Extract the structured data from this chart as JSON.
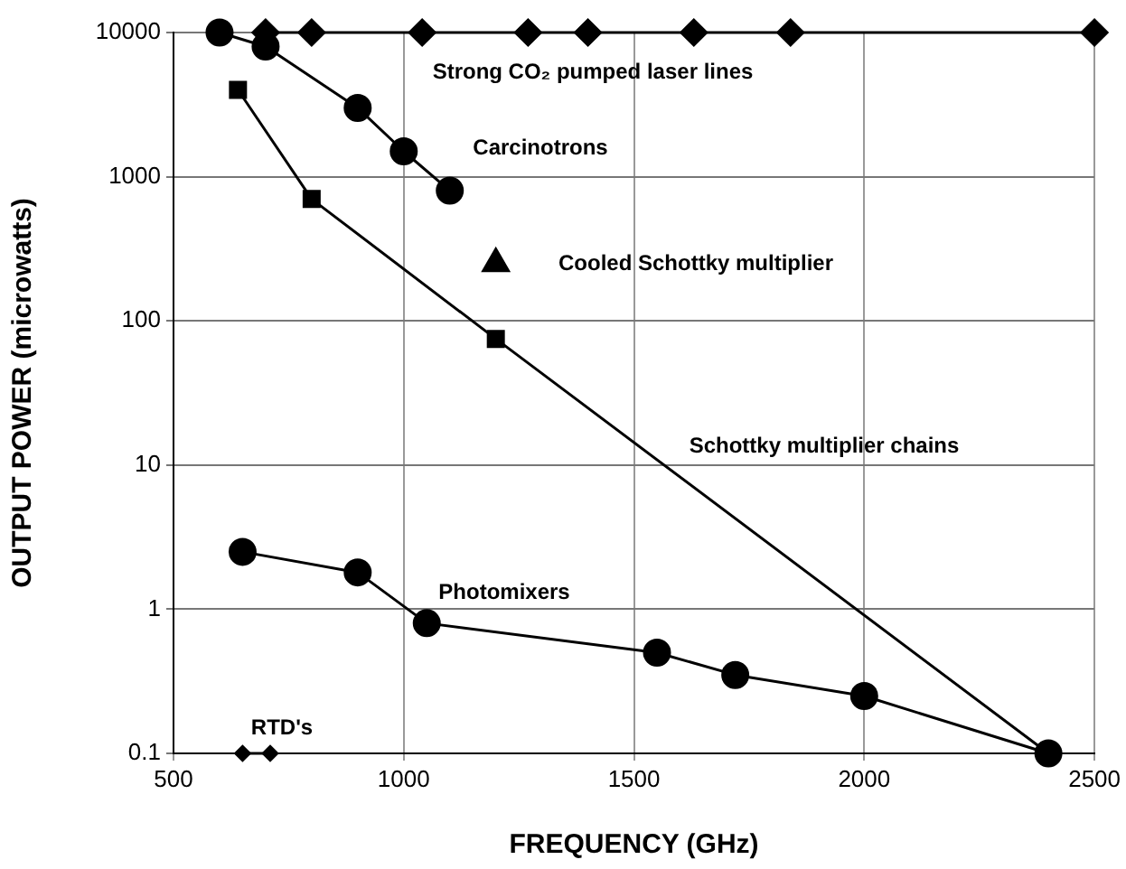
{
  "chart_data": {
    "type": "line",
    "xlabel": "FREQUENCY (GHz)",
    "ylabel": "OUTPUT POWER (microwatts)",
    "xlim": [
      500,
      2500
    ],
    "xticks": [
      500,
      1000,
      1500,
      2000,
      2500
    ],
    "ylim": [
      0.1,
      10000
    ],
    "yticks": [
      0.1,
      1,
      10,
      100,
      1000,
      10000
    ],
    "log": "y",
    "grid": true,
    "legend": false,
    "line_style": "solid",
    "series": [
      {
        "name": "Strong CO₂ pumped laser lines",
        "type": "line",
        "marker": "diamond",
        "color": "#000000",
        "x": [
          700,
          800,
          1040,
          1270,
          1400,
          1630,
          1840,
          2500
        ],
        "values": [
          10000,
          10000,
          10000,
          10000,
          10000,
          10000,
          10000,
          10000
        ]
      },
      {
        "name": "Carcinotrons",
        "type": "line",
        "marker": "circle",
        "color": "#000000",
        "x": [
          600,
          700,
          900,
          1000,
          1100
        ],
        "values": [
          10000,
          8000,
          3000,
          1500,
          800
        ]
      },
      {
        "name": "Cooled Schottky multiplier",
        "type": "scatter",
        "marker": "triangle",
        "color": "#000000",
        "x": [
          1200
        ],
        "values": [
          250
        ]
      },
      {
        "name": "Schottky multiplier chains",
        "type": "line",
        "marker": "square",
        "color": "#000000",
        "x": [
          640,
          800,
          1200,
          2400
        ],
        "values": [
          4000,
          700,
          75,
          0.1
        ]
      },
      {
        "name": "Photomixers",
        "type": "line",
        "marker": "circle",
        "color": "#000000",
        "x": [
          650,
          900,
          1050,
          1550,
          1720,
          2000,
          2400
        ],
        "values": [
          2.5,
          1.8,
          0.8,
          0.5,
          0.35,
          0.25,
          0.1
        ]
      },
      {
        "name": "RTD's",
        "type": "line",
        "marker": "diamond",
        "color": "#000000",
        "x": [
          650,
          710
        ],
        "values": [
          0.1,
          0.1
        ]
      }
    ]
  }
}
